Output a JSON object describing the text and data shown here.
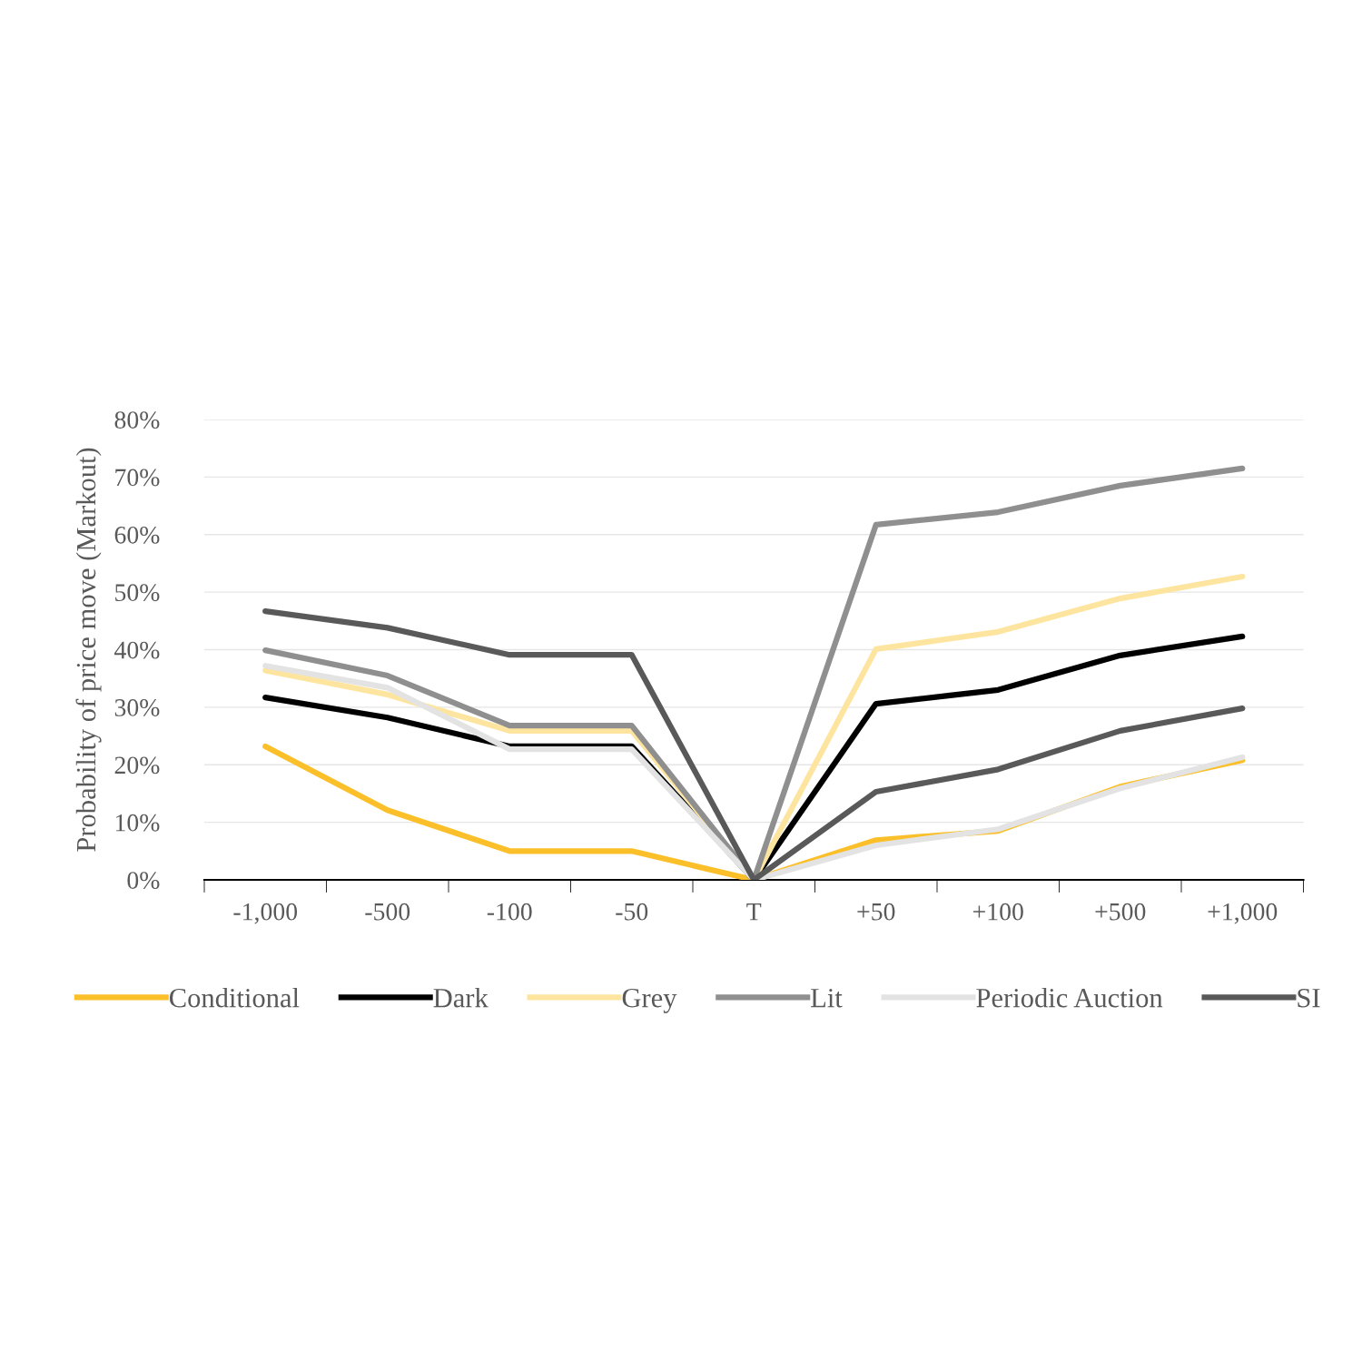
{
  "chart_data": {
    "type": "line",
    "ylabel": "Probability of price move (Markout)",
    "categories": [
      "-1,000",
      "-500",
      "-100",
      "-50",
      "T",
      "+50",
      "+100",
      "+500",
      "+1,000"
    ],
    "series": [
      {
        "name": "Conditional",
        "color": "#fbbf2a",
        "values": [
          23.2,
          12.1,
          5.0,
          5.0,
          0,
          6.9,
          8.5,
          16.2,
          20.8
        ]
      },
      {
        "name": "Dark",
        "color": "#000000",
        "values": [
          31.7,
          28.2,
          23.2,
          23.2,
          0,
          30.6,
          33.0,
          39.0,
          42.3
        ]
      },
      {
        "name": "Grey",
        "color": "#fde5a0",
        "values": [
          36.4,
          32.2,
          25.9,
          25.9,
          0,
          40.1,
          43.1,
          48.9,
          52.7
        ]
      },
      {
        "name": "Lit",
        "color": "#8f8f8f",
        "values": [
          39.9,
          35.5,
          26.8,
          26.8,
          0,
          61.7,
          63.9,
          68.5,
          71.5
        ]
      },
      {
        "name": "Periodic Auction",
        "color": "#e3e3e3",
        "values": [
          37.2,
          33.4,
          22.7,
          22.7,
          0,
          6.0,
          8.8,
          15.9,
          21.3
        ]
      },
      {
        "name": "SI",
        "color": "#595959",
        "values": [
          46.7,
          43.8,
          39.1,
          39.1,
          0,
          15.3,
          19.2,
          25.9,
          29.8
        ]
      }
    ],
    "ylim": [
      0,
      80
    ],
    "yticks": [
      {
        "value": 0,
        "label": "0%"
      },
      {
        "value": 10,
        "label": "10%"
      },
      {
        "value": 20,
        "label": "20%"
      },
      {
        "value": 30,
        "label": "30%"
      },
      {
        "value": 40,
        "label": "40%"
      },
      {
        "value": 50,
        "label": "50%"
      },
      {
        "value": 60,
        "label": "60%"
      },
      {
        "value": 70,
        "label": "70%"
      },
      {
        "value": 80,
        "label": "80%"
      }
    ],
    "grid": "y",
    "legend": "bottom",
    "marker": "none",
    "line_style": "solid"
  }
}
